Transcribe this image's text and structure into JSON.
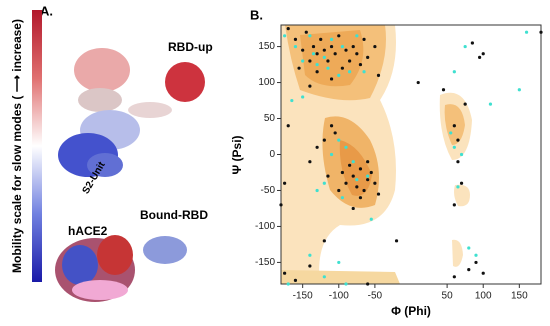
{
  "panel_a": {
    "label": "A.",
    "colorbar_label": "Mobility scale for slow modes ( ⟶ increase)",
    "annotations": [
      "RBD-up",
      "S2-Unit",
      "hACE2",
      "Bound-RBD"
    ]
  },
  "chart_data": {
    "type": "scatter",
    "panel_label": "B.",
    "xlabel": "Φ (Phi)",
    "ylabel": "Ψ (Psi)",
    "xlim": [
      -180,
      180
    ],
    "ylim": [
      -180,
      180
    ],
    "xticks": [
      -150,
      -100,
      -50,
      50,
      100,
      150
    ],
    "yticks": [
      -150,
      -100,
      -50,
      0,
      50,
      100,
      150
    ],
    "series": [
      {
        "color": "#111111",
        "x": [
          -160,
          -150,
          -145,
          -140,
          -135,
          -130,
          -125,
          -120,
          -115,
          -110,
          -105,
          -100,
          -95,
          -90,
          -85,
          -80,
          -75,
          -70,
          -65,
          -60,
          -130,
          -110,
          -155,
          -140,
          -170,
          -50,
          -45,
          -90,
          -80,
          -75,
          -70,
          -65,
          -60,
          -55,
          -50,
          -45,
          -85,
          -95,
          -70,
          -60,
          -100,
          -110,
          -120,
          -130,
          -140,
          -105,
          -115,
          -170,
          -175,
          -175,
          -160,
          -140,
          -80,
          -120,
          -60,
          60,
          65,
          70,
          60,
          60,
          80,
          90,
          100,
          85,
          100,
          75,
          95,
          45,
          10,
          65,
          -20,
          180,
          -180
        ],
        "values": [
          160,
          145,
          170,
          130,
          150,
          140,
          160,
          145,
          130,
          150,
          140,
          165,
          120,
          145,
          130,
          150,
          140,
          125,
          160,
          135,
          115,
          105,
          120,
          95,
          175,
          150,
          110,
          -40,
          -30,
          -45,
          -20,
          -50,
          -35,
          -25,
          -40,
          -55,
          -15,
          -25,
          -60,
          -10,
          -50,
          40,
          20,
          10,
          -10,
          30,
          -30,
          40,
          -40,
          -165,
          -175,
          -155,
          -75,
          -120,
          -180,
          40,
          20,
          -40,
          -70,
          -170,
          -160,
          -150,
          -165,
          155,
          140,
          70,
          135,
          90,
          100,
          -10,
          -120,
          170,
          -70
        ]
      },
      {
        "color": "#3fe0d0",
        "x": [
          -160,
          -150,
          -140,
          -130,
          -120,
          -110,
          -100,
          -95,
          -85,
          -75,
          -65,
          -135,
          -115,
          -100,
          -90,
          -110,
          -80,
          -75,
          -95,
          -120,
          -60,
          -130,
          -150,
          -165,
          60,
          55,
          70,
          65,
          80,
          90,
          110,
          150,
          160,
          -140,
          -100,
          -120,
          -90,
          -55,
          -170,
          60,
          75,
          -175
        ],
        "values": [
          150,
          130,
          165,
          125,
          135,
          160,
          110,
          150,
          115,
          165,
          115,
          140,
          120,
          20,
          10,
          0,
          -10,
          -35,
          -60,
          -40,
          -30,
          -50,
          80,
          75,
          10,
          30,
          0,
          -45,
          -130,
          -140,
          70,
          90,
          170,
          -140,
          -150,
          -170,
          -180,
          -90,
          -180,
          115,
          150,
          165
        ]
      }
    ]
  }
}
